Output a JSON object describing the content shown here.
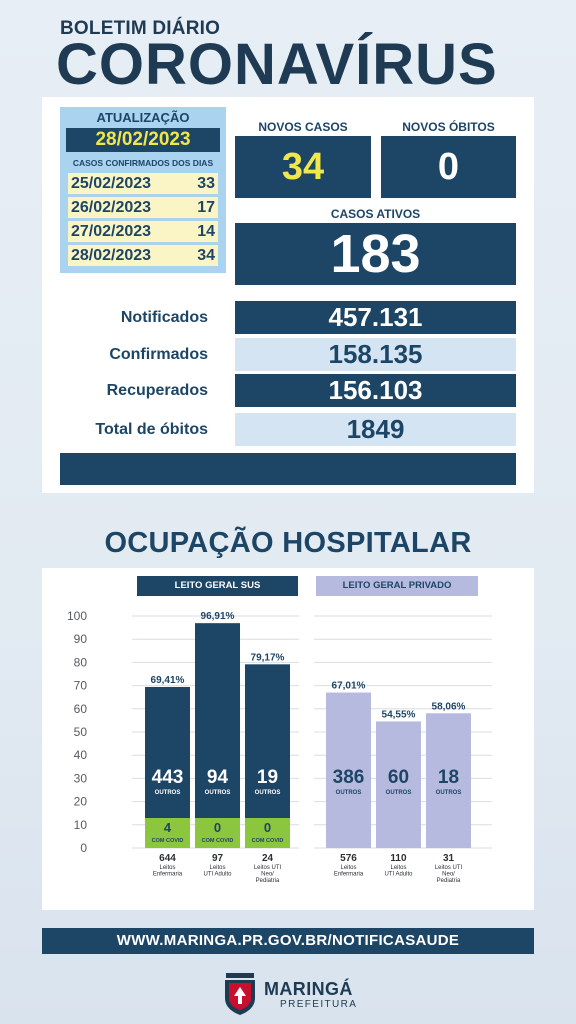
{
  "header": {
    "small_title": "BOLETIM DIÁRIO",
    "big_title": "CORONAVÍRUS"
  },
  "update": {
    "label": "ATUALIZAÇÃO",
    "date": "28/02/2023",
    "subtitle": "CASOS CONFIRMADOS DOS DIAS",
    "days": [
      {
        "date": "25/02/2023",
        "count": "33"
      },
      {
        "date": "26/02/2023",
        "count": "17"
      },
      {
        "date": "27/02/2023",
        "count": "14"
      },
      {
        "date": "28/02/2023",
        "count": "34"
      }
    ]
  },
  "summary": {
    "new_cases_label": "NOVOS CASOS",
    "new_cases": "34",
    "new_deaths_label": "NOVOS ÓBITOS",
    "new_deaths": "0",
    "active_label": "CASOS ATIVOS",
    "active": "183"
  },
  "stats": [
    {
      "label": "Notificados",
      "value": "457.131"
    },
    {
      "label": "Confirmados",
      "value": "158.135"
    },
    {
      "label": "Recuperados",
      "value": "156.103"
    },
    {
      "label": "Total de óbitos",
      "value": "1849"
    }
  ],
  "hospital": {
    "title": "OCUPAÇÃO HOSPITALAR",
    "sus_label": "LEITO GERAL SUS",
    "private_label": "LEITO GERAL PRIVADO"
  },
  "chart_data": {
    "type": "bar",
    "ylim": [
      0,
      100
    ],
    "yticks": [
      100,
      90,
      80,
      70,
      60,
      50,
      40,
      30,
      20,
      10,
      0
    ],
    "groups": [
      {
        "name": "LEITO GERAL SUS",
        "color": "#1d4566",
        "bars": [
          {
            "pct_label": "69,41%",
            "value": 69.41,
            "others": "443",
            "covid": "4",
            "total": "644",
            "cat": [
              "Leitos",
              "Enfermaria"
            ]
          },
          {
            "pct_label": "96,91%",
            "value": 96.91,
            "others": "94",
            "covid": "0",
            "total": "97",
            "cat": [
              "Leitos",
              "UTI Adulto"
            ]
          },
          {
            "pct_label": "79,17%",
            "value": 79.17,
            "others": "19",
            "covid": "0",
            "total": "24",
            "cat": [
              "Leitos UTI",
              "Neo/",
              "Pediatria"
            ]
          }
        ]
      },
      {
        "name": "LEITO GERAL PRIVADO",
        "color": "#b7badf",
        "bars": [
          {
            "pct_label": "67,01%",
            "value": 67.01,
            "others": "386",
            "total": "576",
            "cat": [
              "Leitos",
              "Enfermaria"
            ]
          },
          {
            "pct_label": "54,55%",
            "value": 54.55,
            "others": "60",
            "total": "110",
            "cat": [
              "Leitos",
              "UTI Adulto"
            ]
          },
          {
            "pct_label": "58,06%",
            "value": 58.06,
            "others": "18",
            "total": "31",
            "cat": [
              "Leitos UTI",
              "Neo/",
              "Pediatria"
            ]
          }
        ]
      }
    ],
    "others_label": "OUTROS",
    "covid_label": "COM COVID",
    "covid_color": "#8cc63f"
  },
  "footer": {
    "url": "WWW.MARINGA.PR.GOV.BR/NOTIFICASAUDE",
    "brand": "MARINGÁ",
    "brand_sub": "PREFEITURA"
  }
}
